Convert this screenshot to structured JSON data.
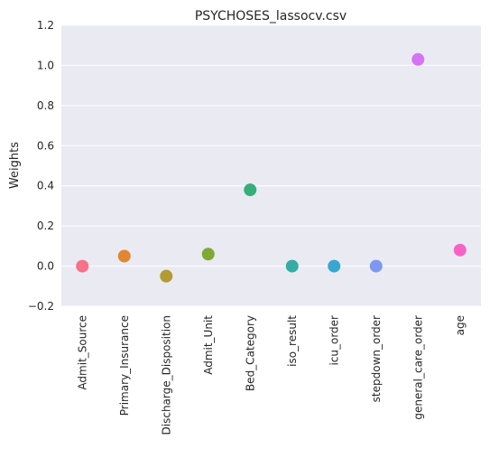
{
  "chart_data": {
    "type": "scatter",
    "title": "PSYCHOSES_lassocv.csv",
    "xlabel": "",
    "ylabel": "Weights",
    "ylim": [
      -0.2,
      1.2
    ],
    "yticks": [
      "−0.2",
      "0.0",
      "0.2",
      "0.4",
      "0.6",
      "0.8",
      "1.0",
      "1.2"
    ],
    "ytick_values": [
      -0.2,
      0.0,
      0.2,
      0.4,
      0.6,
      0.8,
      1.0,
      1.2
    ],
    "grid": true,
    "categories": [
      "Admit_Source",
      "Primary_Insurance",
      "Discharge_Disposition",
      "Admit_Unit",
      "Bed_Category",
      "iso_result",
      "icu_order",
      "stepdown_order",
      "general_care_order",
      "age"
    ],
    "values": [
      0.0,
      0.05,
      -0.05,
      0.06,
      0.38,
      0.0,
      0.0,
      0.0,
      1.03,
      0.08
    ],
    "colors": [
      "#f77189",
      "#e18731",
      "#b29b31",
      "#7ea932",
      "#33b07a",
      "#35aca4",
      "#38a7d0",
      "#7d98f0",
      "#d673f4",
      "#f564c5"
    ],
    "background": "#eaeaf2"
  }
}
